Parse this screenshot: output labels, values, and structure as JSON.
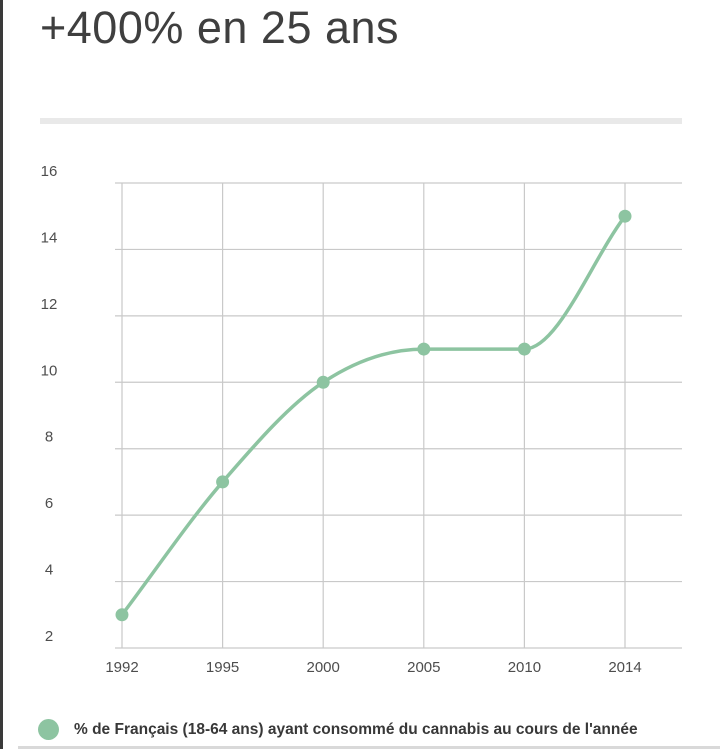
{
  "header": {
    "title": "+400% en 25 ans"
  },
  "legend": {
    "label": "% de Français (18-64 ans) ayant consommé du cannabis au cours de l'année"
  },
  "colors": {
    "accent_green": "#8dc4a1",
    "grid": "#c9c9c9",
    "axis_text": "#4d4d4d",
    "title_text": "#3f3f3f",
    "divider": "#e9e9e9",
    "left_border": "#3a3a3a"
  },
  "chart_data": {
    "type": "line",
    "title": "+400% en 25 ans",
    "categories": [
      "1992",
      "1995",
      "2000",
      "2005",
      "2010",
      "2014"
    ],
    "values": [
      3,
      7,
      10,
      11,
      11,
      15
    ],
    "series_label": "% de Français (18-64 ans) ayant consommé du cannabis au cours de l'année",
    "xlabel": "",
    "ylabel": "",
    "y_ticks": [
      2,
      4,
      6,
      8,
      10,
      12,
      14,
      16
    ],
    "ylim": [
      2,
      16
    ],
    "grid": true,
    "line_color": "#8dc4a1",
    "marker": "circle",
    "legend_position": "bottom"
  }
}
